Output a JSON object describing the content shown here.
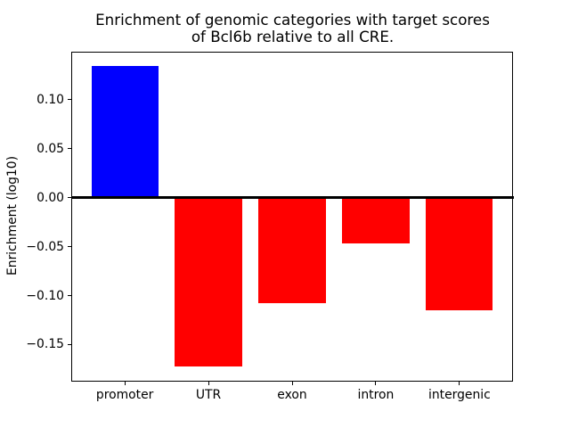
{
  "chart_data": {
    "type": "bar",
    "title": "Enrichment of genomic categories with target scores\nof Bcl6b relative to all CRE.",
    "categories": [
      "promoter",
      "UTR",
      "exon",
      "intron",
      "intergenic"
    ],
    "values": [
      0.134,
      -0.172,
      -0.108,
      -0.047,
      -0.115
    ],
    "bar_colors": [
      "#0000ff",
      "#ff0000",
      "#ff0000",
      "#ff0000",
      "#ff0000"
    ],
    "xlabel": "",
    "ylabel": "Enrichment (log10)",
    "ylim": [
      -0.1873,
      0.1493
    ],
    "yticks": [
      0.1,
      0.05,
      0.0,
      -0.05,
      -0.1,
      -0.15
    ],
    "ytick_labels": [
      "0.10",
      "0.05",
      "0.00",
      "−0.05",
      "−0.10",
      "−0.15"
    ],
    "bar_width_fraction": 0.8,
    "zero_line": true,
    "grid": false,
    "legend": "none",
    "colors": {
      "positive_bar": "#0000ff",
      "negative_bar": "#ff0000",
      "axis": "#000000",
      "background": "#ffffff"
    }
  }
}
